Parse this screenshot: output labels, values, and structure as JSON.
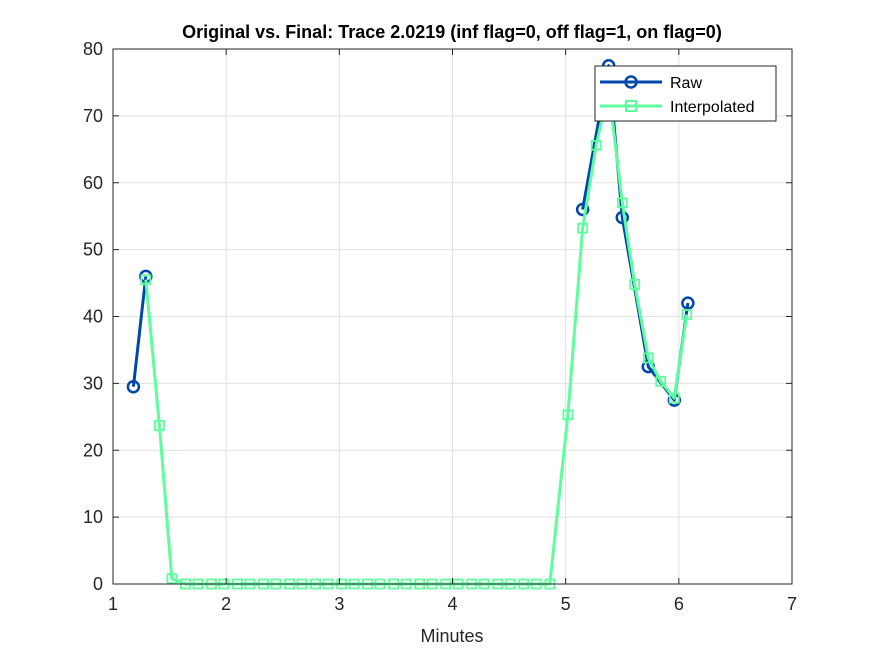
{
  "chart_data": {
    "type": "line",
    "title": "Original vs. Final: Trace 2.0219 (inf flag=0, off flag=1, on flag=0)",
    "xlabel": "Minutes",
    "ylabel": "",
    "xlim": [
      1,
      7
    ],
    "ylim": [
      0,
      80
    ],
    "xticks": [
      "1",
      "2",
      "3",
      "4",
      "5",
      "6",
      "7"
    ],
    "yticks": [
      "0",
      "10",
      "20",
      "30",
      "40",
      "50",
      "60",
      "70",
      "80"
    ],
    "grid": true,
    "legend_position": "top-right",
    "series": [
      {
        "name": "Raw",
        "color": "#0047AB",
        "marker": "circle",
        "segments": [
          [
            [
              1.18,
              29.5
            ],
            [
              1.29,
              46.0
            ]
          ],
          [
            [
              5.15,
              56.0
            ],
            [
              5.38,
              77.5
            ],
            [
              5.5,
              54.8
            ],
            [
              5.73,
              32.5
            ],
            [
              5.96,
              27.5
            ],
            [
              6.08,
              42.0
            ]
          ]
        ]
      },
      {
        "name": "Interpolated",
        "color": "#5CFF9B",
        "marker": "square",
        "segments": [
          [
            [
              1.29,
              45.5
            ],
            [
              1.41,
              23.7
            ],
            [
              1.52,
              0.8
            ],
            [
              1.64,
              0
            ],
            [
              1.75,
              0
            ],
            [
              1.87,
              0
            ],
            [
              1.98,
              0
            ],
            [
              2.1,
              0
            ],
            [
              2.21,
              0
            ],
            [
              2.33,
              0
            ],
            [
              2.44,
              0
            ],
            [
              2.56,
              0
            ],
            [
              2.67,
              0
            ],
            [
              2.79,
              0
            ],
            [
              2.9,
              0
            ],
            [
              3.02,
              0
            ],
            [
              3.13,
              0
            ],
            [
              3.25,
              0
            ],
            [
              3.36,
              0
            ],
            [
              3.48,
              0
            ],
            [
              3.59,
              0
            ],
            [
              3.71,
              0
            ],
            [
              3.82,
              0
            ],
            [
              3.94,
              0
            ],
            [
              4.05,
              0
            ],
            [
              4.17,
              0
            ],
            [
              4.28,
              0
            ],
            [
              4.4,
              0
            ],
            [
              4.51,
              0
            ],
            [
              4.63,
              0
            ],
            [
              4.74,
              0
            ],
            [
              4.86,
              0
            ],
            [
              5.02,
              25.3
            ],
            [
              5.15,
              53.2
            ],
            [
              5.27,
              65.6
            ],
            [
              5.38,
              74.0
            ],
            [
              5.5,
              57.0
            ],
            [
              5.61,
              44.8
            ],
            [
              5.73,
              33.8
            ],
            [
              5.84,
              30.3
            ],
            [
              5.96,
              27.8
            ],
            [
              6.07,
              40.3
            ]
          ]
        ]
      }
    ]
  }
}
